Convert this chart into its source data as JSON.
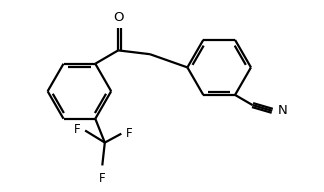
{
  "background": "#ffffff",
  "line_color": "#000000",
  "line_width": 1.6,
  "font_size": 8.5,
  "figsize": [
    3.24,
    1.92
  ],
  "dpi": 100,
  "xlim": [
    0,
    10
  ],
  "ylim": [
    0,
    6
  ]
}
